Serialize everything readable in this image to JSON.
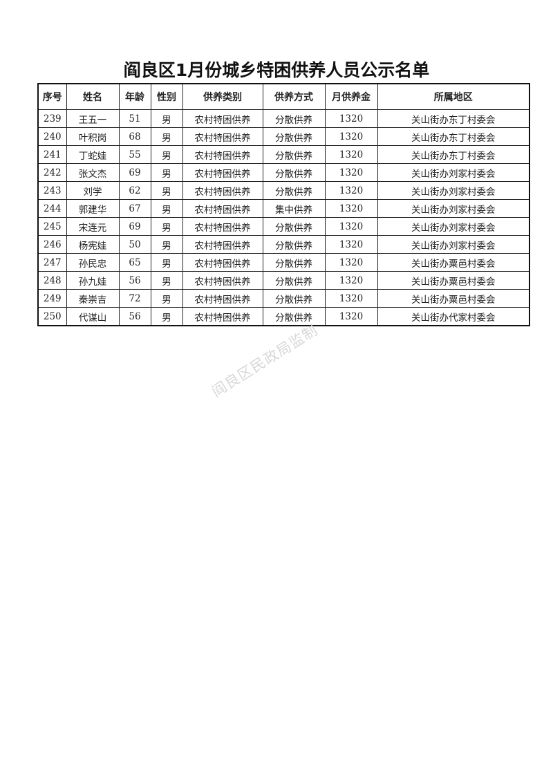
{
  "title": "阎良区1月份城乡特困供养人员公示名单",
  "columns": [
    "序号",
    "姓名",
    "年龄",
    "性别",
    "供养类别",
    "供养方式",
    "月供养金",
    "所属地区"
  ],
  "rows": [
    [
      "239",
      "王五一",
      "51",
      "男",
      "农村特困供养",
      "分散供养",
      "1320",
      "关山街办东丁村委会"
    ],
    [
      "240",
      "叶积岗",
      "68",
      "男",
      "农村特困供养",
      "分散供养",
      "1320",
      "关山街办东丁村委会"
    ],
    [
      "241",
      "丁蛇娃",
      "55",
      "男",
      "农村特困供养",
      "分散供养",
      "1320",
      "关山街办东丁村委会"
    ],
    [
      "242",
      "张文杰",
      "69",
      "男",
      "农村特困供养",
      "分散供养",
      "1320",
      "关山街办刘家村委会"
    ],
    [
      "243",
      "刘学",
      "62",
      "男",
      "农村特困供养",
      "分散供养",
      "1320",
      "关山街办刘家村委会"
    ],
    [
      "244",
      "郭建华",
      "67",
      "男",
      "农村特困供养",
      "集中供养",
      "1320",
      "关山街办刘家村委会"
    ],
    [
      "245",
      "宋连元",
      "69",
      "男",
      "农村特困供养",
      "分散供养",
      "1320",
      "关山街办刘家村委会"
    ],
    [
      "246",
      "杨宪娃",
      "50",
      "男",
      "农村特困供养",
      "分散供养",
      "1320",
      "关山街办刘家村委会"
    ],
    [
      "247",
      "孙民忠",
      "65",
      "男",
      "农村特困供养",
      "分散供养",
      "1320",
      "关山街办粟邑村委会"
    ],
    [
      "248",
      "孙九娃",
      "56",
      "男",
      "农村特困供养",
      "分散供养",
      "1320",
      "关山街办粟邑村委会"
    ],
    [
      "249",
      "秦崇吉",
      "72",
      "男",
      "农村特困供养",
      "分散供养",
      "1320",
      "关山街办粟邑村委会"
    ],
    [
      "250",
      "代谋山",
      "56",
      "男",
      "农村特困供养",
      "分散供养",
      "1320",
      "关山街办代家村委会"
    ]
  ],
  "watermark": "阎良区民政局监制"
}
